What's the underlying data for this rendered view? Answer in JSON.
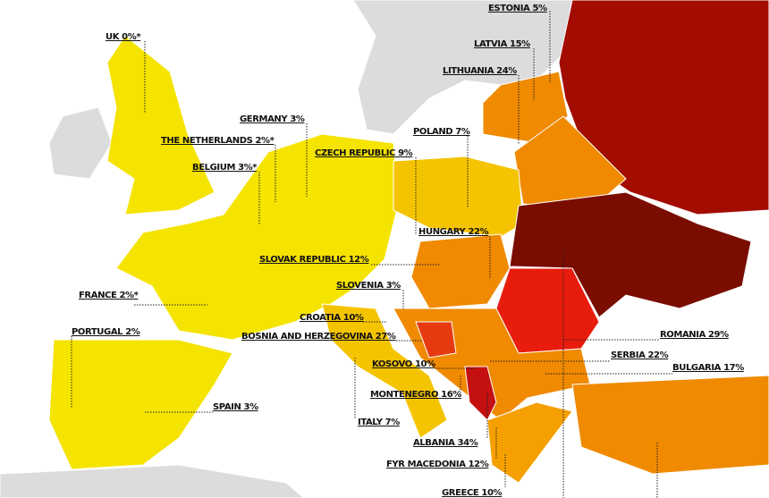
{
  "labels": [
    "ESTONIA 5%",
    "LATVIA 15%",
    "LITHUANIA 24%",
    "POLAND 7%",
    "UK 0%*",
    "GERMANY 3%",
    "THE NETHERLANDS 2%*",
    "BELGIUM 3%*",
    "CZECH REPUBLIC 9%",
    "HUNGARY 22%",
    "SLOVAK REPUBLIC 12%",
    "FRANCE 2%*",
    "SLOVENIA 3%",
    "CROATIA 10%",
    "BOSNIA AND HERZEGOVINA 27%",
    "PORTUGAL 2%",
    "ROMANIA 29%",
    "SERBIA 22%",
    "BULGARIA 17%",
    "KOSOVO 10%",
    "MONTENEGRO 16%",
    "SPAIN 3%",
    "ITALY 7%",
    "ALBANIA 34%",
    "FYR MACEDONIA 12%",
    "GREECE 10%"
  ]
}
